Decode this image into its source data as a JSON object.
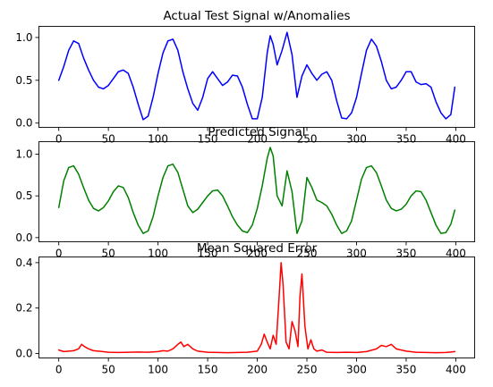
{
  "chart_data": [
    {
      "type": "line",
      "title": "Actual Test Signal w/Anomalies",
      "xlabel": "",
      "ylabel": "",
      "xlim": [
        -20,
        419
      ],
      "ylim": [
        -0.05,
        1.13
      ],
      "xticks": [
        0,
        50,
        100,
        150,
        200,
        250,
        300,
        350,
        400
      ],
      "xtick_labels": [
        "0",
        "50",
        "100",
        "150",
        "200",
        "250",
        "300",
        "350",
        "400"
      ],
      "yticks": [
        0.0,
        0.5,
        1.0
      ],
      "ytick_labels": [
        "0.0",
        "0.5",
        "1.0"
      ],
      "grid": false,
      "series": [
        {
          "color": "#0000ff",
          "x": [
            0,
            5,
            10,
            15,
            20,
            25,
            30,
            35,
            40,
            45,
            50,
            55,
            60,
            65,
            70,
            75,
            80,
            85,
            90,
            95,
            100,
            105,
            110,
            115,
            120,
            125,
            130,
            135,
            140,
            145,
            150,
            155,
            160,
            165,
            170,
            175,
            180,
            185,
            190,
            195,
            200,
            205,
            210,
            213,
            216,
            220,
            225,
            230,
            235,
            240,
            245,
            250,
            255,
            260,
            265,
            270,
            275,
            280,
            285,
            290,
            295,
            300,
            305,
            310,
            315,
            320,
            325,
            330,
            335,
            340,
            345,
            350,
            355,
            360,
            365,
            370,
            375,
            380,
            385,
            390,
            395,
            399
          ],
          "y": [
            0.5,
            0.66,
            0.85,
            0.96,
            0.93,
            0.76,
            0.62,
            0.5,
            0.42,
            0.4,
            0.44,
            0.52,
            0.6,
            0.62,
            0.58,
            0.42,
            0.22,
            0.04,
            0.08,
            0.3,
            0.58,
            0.82,
            0.96,
            0.98,
            0.85,
            0.6,
            0.4,
            0.23,
            0.15,
            0.3,
            0.52,
            0.6,
            0.52,
            0.44,
            0.48,
            0.56,
            0.55,
            0.42,
            0.22,
            0.05,
            0.05,
            0.3,
            0.82,
            1.02,
            0.92,
            0.68,
            0.85,
            1.06,
            0.8,
            0.3,
            0.55,
            0.68,
            0.58,
            0.5,
            0.57,
            0.6,
            0.5,
            0.26,
            0.06,
            0.05,
            0.12,
            0.3,
            0.58,
            0.85,
            0.98,
            0.9,
            0.72,
            0.5,
            0.4,
            0.42,
            0.5,
            0.6,
            0.6,
            0.48,
            0.45,
            0.46,
            0.42,
            0.25,
            0.12,
            0.05,
            0.1,
            0.42
          ]
        }
      ]
    },
    {
      "type": "line",
      "title": "Predicted Signal",
      "xlabel": "",
      "ylabel": "",
      "xlim": [
        -20,
        419
      ],
      "ylim": [
        -0.05,
        1.15
      ],
      "xticks": [
        0,
        50,
        100,
        150,
        200,
        250,
        300,
        350,
        400
      ],
      "xtick_labels": [
        "0",
        "50",
        "100",
        "150",
        "200",
        "250",
        "300",
        "350",
        "400"
      ],
      "yticks": [
        0.0,
        0.5,
        1.0
      ],
      "ytick_labels": [
        "0.0",
        "0.5",
        "1.0"
      ],
      "grid": false,
      "series": [
        {
          "color": "#008000",
          "x": [
            0,
            5,
            10,
            15,
            20,
            25,
            30,
            35,
            40,
            45,
            50,
            55,
            60,
            65,
            70,
            75,
            80,
            85,
            90,
            95,
            100,
            105,
            110,
            115,
            120,
            125,
            130,
            135,
            140,
            145,
            150,
            155,
            160,
            165,
            170,
            175,
            180,
            185,
            190,
            195,
            200,
            205,
            210,
            213,
            216,
            220,
            225,
            230,
            235,
            240,
            245,
            250,
            255,
            260,
            265,
            270,
            275,
            280,
            285,
            290,
            295,
            300,
            305,
            310,
            315,
            320,
            325,
            330,
            335,
            340,
            345,
            350,
            355,
            360,
            365,
            370,
            375,
            380,
            385,
            390,
            395,
            399
          ],
          "y": [
            0.36,
            0.68,
            0.84,
            0.86,
            0.76,
            0.6,
            0.45,
            0.35,
            0.32,
            0.36,
            0.44,
            0.55,
            0.62,
            0.6,
            0.48,
            0.3,
            0.15,
            0.05,
            0.08,
            0.25,
            0.5,
            0.72,
            0.86,
            0.88,
            0.78,
            0.58,
            0.38,
            0.3,
            0.34,
            0.42,
            0.5,
            0.56,
            0.57,
            0.5,
            0.38,
            0.25,
            0.15,
            0.08,
            0.06,
            0.15,
            0.35,
            0.62,
            0.95,
            1.08,
            0.98,
            0.5,
            0.38,
            0.8,
            0.55,
            0.05,
            0.2,
            0.72,
            0.6,
            0.45,
            0.42,
            0.38,
            0.28,
            0.15,
            0.05,
            0.08,
            0.2,
            0.45,
            0.7,
            0.84,
            0.86,
            0.78,
            0.62,
            0.45,
            0.35,
            0.32,
            0.34,
            0.4,
            0.5,
            0.56,
            0.55,
            0.45,
            0.3,
            0.15,
            0.05,
            0.06,
            0.16,
            0.33
          ]
        }
      ]
    },
    {
      "type": "line",
      "title": "Mean Squared Error",
      "xlabel": "",
      "ylabel": "",
      "xlim": [
        -20,
        419
      ],
      "ylim": [
        -0.02,
        0.425
      ],
      "xticks": [
        0,
        50,
        100,
        150,
        200,
        250,
        300,
        350,
        400
      ],
      "xtick_labels": [
        "0",
        "50",
        "100",
        "150",
        "200",
        "250",
        "300",
        "350",
        "400"
      ],
      "yticks": [
        0.0,
        0.2,
        0.4
      ],
      "ytick_labels": [
        "0.0",
        "0.2",
        "0.4"
      ],
      "grid": false,
      "series": [
        {
          "color": "#ff0000",
          "x": [
            0,
            5,
            10,
            15,
            20,
            23,
            26,
            30,
            35,
            40,
            50,
            60,
            70,
            80,
            90,
            100,
            105,
            110,
            115,
            120,
            123,
            126,
            130,
            135,
            140,
            150,
            160,
            170,
            180,
            190,
            200,
            204,
            207,
            210,
            213,
            216,
            219,
            222,
            224,
            226,
            229,
            232,
            235,
            238,
            241,
            243,
            245,
            248,
            251,
            254,
            257,
            260,
            265,
            270,
            280,
            290,
            300,
            310,
            320,
            325,
            330,
            335,
            340,
            350,
            360,
            370,
            380,
            390,
            395,
            399
          ],
          "y": [
            0.015,
            0.008,
            0.01,
            0.012,
            0.02,
            0.04,
            0.03,
            0.02,
            0.012,
            0.01,
            0.005,
            0.004,
            0.005,
            0.006,
            0.005,
            0.008,
            0.012,
            0.01,
            0.02,
            0.04,
            0.05,
            0.03,
            0.04,
            0.02,
            0.01,
            0.005,
            0.004,
            0.003,
            0.004,
            0.005,
            0.01,
            0.04,
            0.085,
            0.05,
            0.02,
            0.08,
            0.04,
            0.25,
            0.4,
            0.3,
            0.05,
            0.02,
            0.14,
            0.1,
            0.03,
            0.25,
            0.35,
            0.12,
            0.02,
            0.06,
            0.02,
            0.01,
            0.015,
            0.005,
            0.004,
            0.005,
            0.004,
            0.008,
            0.02,
            0.035,
            0.03,
            0.04,
            0.02,
            0.01,
            0.005,
            0.004,
            0.003,
            0.004,
            0.006,
            0.008
          ]
        }
      ]
    }
  ]
}
